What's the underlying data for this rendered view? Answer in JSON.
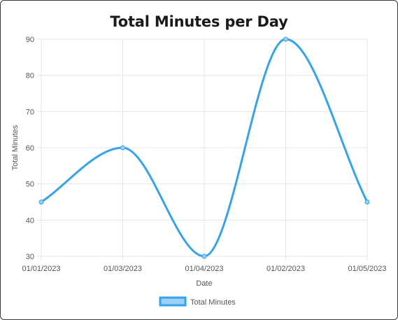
{
  "chart_data": {
    "type": "line",
    "title": "Total Minutes per Day",
    "xlabel": "Date",
    "ylabel": "Total Minutes",
    "categories": [
      "01/01/2023",
      "01/03/2023",
      "01/04/2023",
      "01/02/2023",
      "01/05/2023"
    ],
    "series": [
      {
        "name": "Total Minutes",
        "values": [
          45,
          60,
          30,
          90,
          45
        ]
      }
    ],
    "ylim": [
      30,
      90
    ],
    "yticks": [
      30,
      40,
      50,
      60,
      70,
      80,
      90
    ],
    "grid": true,
    "legend": "bottom",
    "colors": {
      "line": "#36a2eb",
      "fill": "#9ad0f5",
      "grid": "#e5e5e5"
    }
  }
}
